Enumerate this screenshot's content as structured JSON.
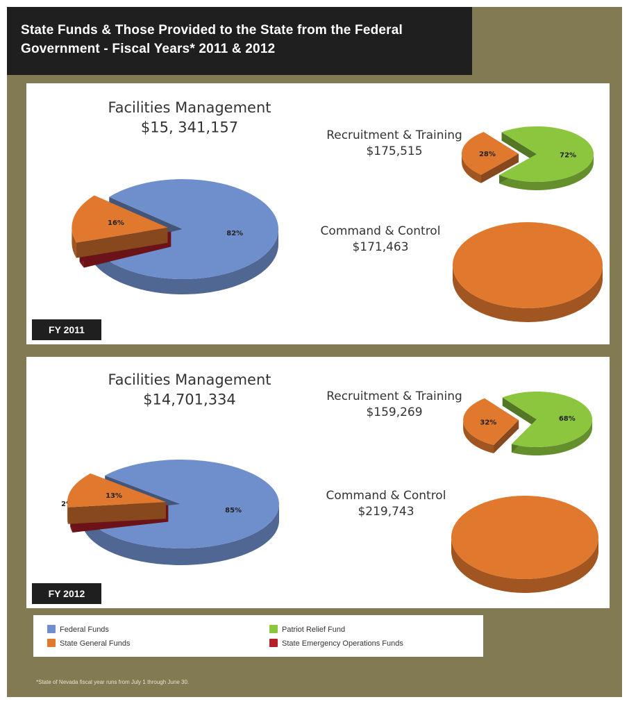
{
  "title": "State Funds & Those Provided to the State from the Federal Government - Fiscal Years* 2011 & 2012",
  "footnote": "*State of Nevada fiscal year runs from July 1 through June 30.",
  "legend": [
    {
      "label": "Federal Funds",
      "color": "#6f8fcc"
    },
    {
      "label": "State General Funds",
      "color": "#e0782e"
    },
    {
      "label": "Patriot Relief Fund",
      "color": "#8cc63f"
    },
    {
      "label": "State Emergency Operations Funds",
      "color": "#b3202a"
    }
  ],
  "panels": [
    {
      "badge": "FY 2011"
    },
    {
      "badge": "FY 2012"
    }
  ],
  "chart_data": [
    {
      "type": "pie",
      "fiscal_year": "FY 2011",
      "title": "Facilities Management",
      "subtitle": "$15, 341,157",
      "slices": [
        {
          "label": "Federal Funds",
          "value": 82,
          "text": "82%",
          "color": "#6f8fcc"
        },
        {
          "label": "State Emergency Operations Funds",
          "value": 2,
          "text": "2%",
          "color": "#b3202a"
        },
        {
          "label": "State General Funds",
          "value": 16,
          "text": "16%",
          "color": "#e0782e"
        }
      ]
    },
    {
      "type": "pie",
      "fiscal_year": "FY 2011",
      "title": "Recruitment & Training",
      "subtitle": "$175,515",
      "slices": [
        {
          "label": "Patriot Relief Fund",
          "value": 72,
          "text": "72%",
          "color": "#8cc63f"
        },
        {
          "label": "State General Funds",
          "value": 28,
          "text": "28%",
          "color": "#e0782e"
        }
      ]
    },
    {
      "type": "pie",
      "fiscal_year": "FY 2011",
      "title": "Command & Control",
      "subtitle": "$171,463",
      "slices": [
        {
          "label": "State General Funds",
          "value": 100,
          "text": "",
          "color": "#e0782e"
        }
      ]
    },
    {
      "type": "pie",
      "fiscal_year": "FY 2012",
      "title": "Facilities Management",
      "subtitle": "$14,701,334",
      "slices": [
        {
          "label": "Federal Funds",
          "value": 85,
          "text": "85%",
          "color": "#6f8fcc"
        },
        {
          "label": "State Emergency Operations Funds",
          "value": 2,
          "text": "2%",
          "color": "#b3202a"
        },
        {
          "label": "State General Funds",
          "value": 13,
          "text": "13%",
          "color": "#e0782e"
        }
      ]
    },
    {
      "type": "pie",
      "fiscal_year": "FY 2012",
      "title": "Recruitment & Training",
      "subtitle": "$159,269",
      "slices": [
        {
          "label": "Patriot Relief Fund",
          "value": 68,
          "text": "68%",
          "color": "#8cc63f"
        },
        {
          "label": "State General Funds",
          "value": 32,
          "text": "32%",
          "color": "#e0782e"
        }
      ]
    },
    {
      "type": "pie",
      "fiscal_year": "FY 2012",
      "title": "Command & Control",
      "subtitle": "$219,743",
      "slices": [
        {
          "label": "State General Funds",
          "value": 100,
          "text": "",
          "color": "#e0782e"
        }
      ]
    }
  ]
}
